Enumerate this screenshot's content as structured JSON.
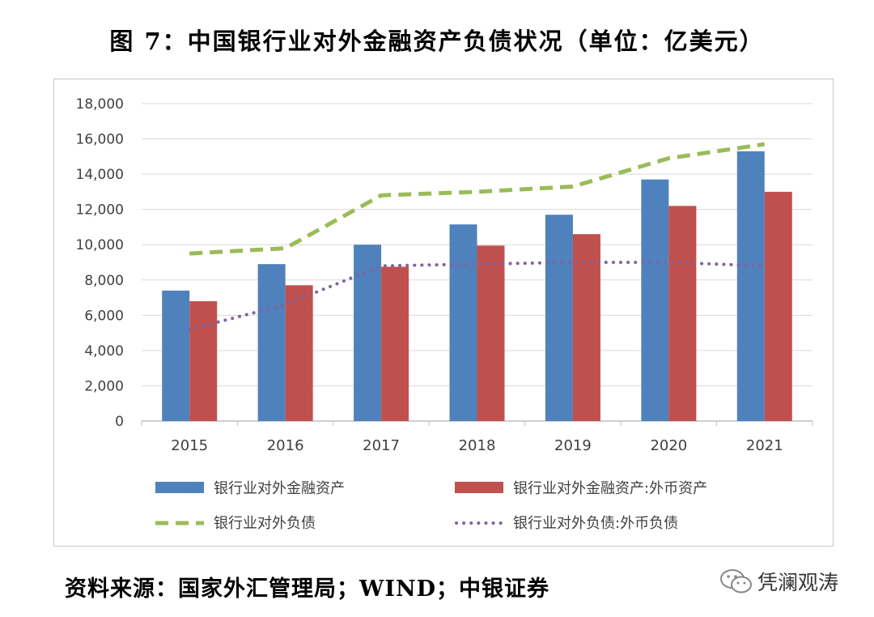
{
  "title": "图 7：中国银行业对外金融资产负债状况（单位：亿美元）",
  "source": "资料来源：国家外汇管理局；WIND；中银证券",
  "watermark": "凭澜观涛",
  "watermark_icon": "wechat-icon",
  "colors": {
    "assets": "#4f81bd",
    "fx_assets": "#c0504d",
    "liabilities": "#9bbb59",
    "fx_liabilities": "#8064a2",
    "grid": "#d9d9d9",
    "axis": "#bfbfbf"
  },
  "chart_data": {
    "type": "bar",
    "categories": [
      "2015",
      "2016",
      "2017",
      "2018",
      "2019",
      "2020",
      "2021"
    ],
    "ylim": [
      0,
      18000
    ],
    "yticks": [
      0,
      2000,
      4000,
      6000,
      8000,
      10000,
      12000,
      14000,
      16000,
      18000
    ],
    "ytick_labels": [
      "0",
      "2,000",
      "4,000",
      "6,000",
      "8,000",
      "10,000",
      "12,000",
      "14,000",
      "16,000",
      "18,000"
    ],
    "grid": true,
    "legend_position": "bottom",
    "series": [
      {
        "name": "银行业对外金融资产",
        "kind": "bar",
        "color": "#4f81bd",
        "values": [
          7400,
          8900,
          10000,
          11150,
          11700,
          13700,
          15300
        ]
      },
      {
        "name": "银行业对外金融资产:外币资产",
        "kind": "bar",
        "color": "#c0504d",
        "values": [
          6800,
          7700,
          8750,
          9950,
          10600,
          12200,
          13000
        ]
      },
      {
        "name": "银行业对外负债",
        "kind": "line-dashed",
        "color": "#9bbb59",
        "values": [
          9500,
          9800,
          12800,
          13000,
          13300,
          14900,
          15700
        ]
      },
      {
        "name": "银行业对外负债:外币负债",
        "kind": "line-dotted",
        "color": "#8064a2",
        "values": [
          5200,
          6600,
          8800,
          8900,
          9000,
          9000,
          8800
        ]
      }
    ]
  }
}
